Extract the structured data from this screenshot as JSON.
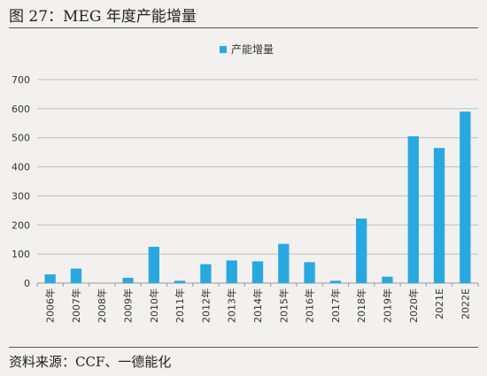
{
  "header": {
    "title": "图 27：MEG 年度产能增量"
  },
  "footer": {
    "source": "资料来源：CCF、一德能化"
  },
  "chart_data": {
    "type": "bar",
    "title": "",
    "xlabel": "",
    "ylabel": "",
    "ylim": [
      0,
      700
    ],
    "yticks": [
      0,
      100,
      200,
      300,
      400,
      500,
      600,
      700
    ],
    "grid": true,
    "legend_position": "top-center",
    "categories": [
      "2006年",
      "2007年",
      "2008年",
      "2009年",
      "2010年",
      "2011年",
      "2012年",
      "2013年",
      "2014年",
      "2015年",
      "2016年",
      "2017年",
      "2018年",
      "2019年",
      "2020年",
      "2021E",
      "2022E"
    ],
    "series": [
      {
        "name": "产能增量",
        "color": "#29a8e0",
        "values": [
          30,
          50,
          0,
          18,
          125,
          8,
          65,
          78,
          75,
          135,
          72,
          8,
          222,
          22,
          505,
          465,
          590
        ]
      }
    ]
  }
}
